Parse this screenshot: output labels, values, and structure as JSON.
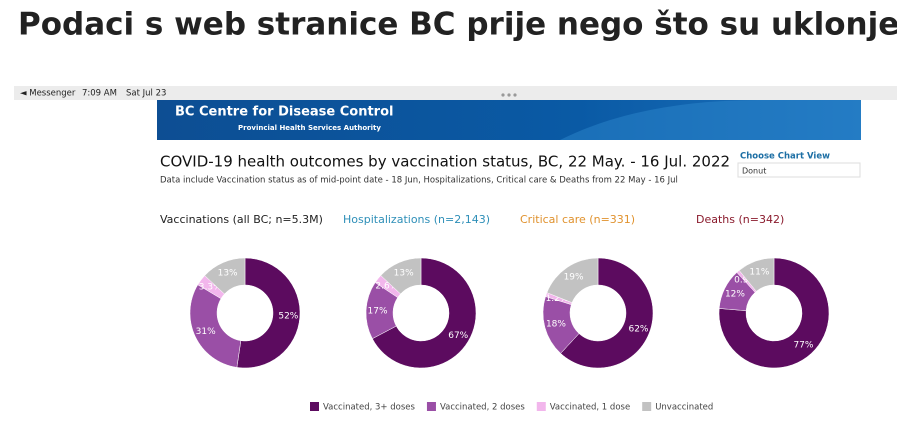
{
  "headline": "Podaci s web stranice BC prije nego što su uklonjeni",
  "status_bar": {
    "app": "◄ Messenger",
    "time": "7:09 AM",
    "date": "Sat Jul 23"
  },
  "banner": {
    "title": "BC Centre for Disease Control",
    "subtitle": "Provincial Health Services Authority"
  },
  "title": "COVID-19 health outcomes by vaccination status, BC,  22 May. - 16 Jul. 2022",
  "subtitle": "Data include Vaccination status as of mid-point date - 18 Jun, Hospitalizations, Critical care & Deaths from 22 May - 16 Jul",
  "control": {
    "label": "Choose Chart View",
    "value": "Donut"
  },
  "chart_data": [
    {
      "type": "donut",
      "title": "Vaccinations (all BC; n=5.3M)",
      "title_color": "#222222",
      "categories": [
        "Vaccinated, 3+ doses",
        "Vaccinated, 2 doses",
        "Vaccinated, 1 dose",
        "Unvaccinated"
      ],
      "values": [
        52,
        31,
        3.3,
        13
      ],
      "value_labels": [
        "52%",
        "31%",
        "3.3%",
        "13%"
      ],
      "colors": [
        "#5c0b5f",
        "#9a4fa6",
        "#f2b6ec",
        "#c2c2c2"
      ]
    },
    {
      "type": "donut",
      "title": "Hospitalizations (n=2,143)",
      "title_color": "#2e8fb8",
      "categories": [
        "Vaccinated, 3+ doses",
        "Vaccinated, 2 doses",
        "Vaccinated, 1 dose",
        "Unvaccinated"
      ],
      "values": [
        67,
        17,
        2.6,
        13
      ],
      "value_labels": [
        "67%",
        "17%",
        "2.6%",
        "13%"
      ],
      "colors": [
        "#5c0b5f",
        "#9a4fa6",
        "#f2b6ec",
        "#c2c2c2"
      ]
    },
    {
      "type": "donut",
      "title": "Critical care (n=331)",
      "title_color": "#e0922e",
      "categories": [
        "Vaccinated, 3+ doses",
        "Vaccinated, 2 doses",
        "Vaccinated, 1 dose",
        "Unvaccinated"
      ],
      "values": [
        62,
        18,
        1.2,
        19
      ],
      "value_labels": [
        "62%",
        "18%",
        "1.2%",
        "19%"
      ],
      "colors": [
        "#5c0b5f",
        "#9a4fa6",
        "#f2b6ec",
        "#c2c2c2"
      ]
    },
    {
      "type": "donut",
      "title": "Deaths (n=342)",
      "title_color": "#8a1a2c",
      "categories": [
        "Vaccinated, 3+ doses",
        "Vaccinated, 2 doses",
        "Vaccinated, 1 dose",
        "Unvaccinated"
      ],
      "values": [
        77,
        12,
        0.9,
        11
      ],
      "value_labels": [
        "77%",
        "12%",
        "0.9%",
        "11%"
      ],
      "colors": [
        "#5c0b5f",
        "#9a4fa6",
        "#f2b6ec",
        "#c2c2c2"
      ]
    }
  ]
}
